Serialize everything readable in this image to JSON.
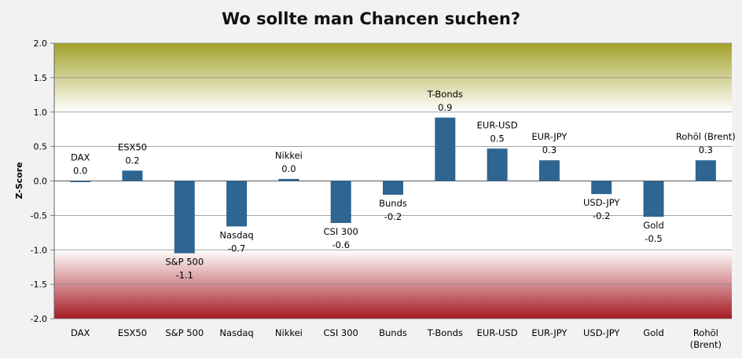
{
  "chart_data": {
    "type": "bar",
    "title": "Wo sollte man Chancen suchen?",
    "ylabel": "Z-Score",
    "xlabel": "",
    "ylim": [
      -2.0,
      2.0
    ],
    "yticks": [
      "2.0",
      "1.5",
      "1.0",
      "0.5",
      "0.0",
      "-0.5",
      "-1.0",
      "-1.5",
      "-2.0"
    ],
    "categories": [
      "DAX",
      "ESX50",
      "S&P 500",
      "Nasdaq",
      "Nikkei",
      "CSI 300",
      "Bunds",
      "T-Bonds",
      "EUR-USD",
      "EUR-JPY",
      "USD-JPY",
      "Gold",
      "Rohöl (Brent)"
    ],
    "values": [
      0.0,
      0.15,
      -1.05,
      -0.66,
      0.03,
      -0.61,
      -0.2,
      0.92,
      0.47,
      0.3,
      -0.19,
      -0.52,
      0.3
    ],
    "value_labels": [
      "0.0",
      "0.2",
      "-1.1",
      "-0.7",
      "0.0",
      "-0.6",
      "-0.2",
      "0.9",
      "0.5",
      "0.3",
      "-0.2",
      "-0.5",
      "0.3"
    ],
    "bar_color": "#2e6591",
    "background_bands": {
      "top": {
        "from": 1.0,
        "to": 2.0,
        "color": "#a3a22a"
      },
      "bottom": {
        "from": -1.0,
        "to": -2.0,
        "color": "#a71a23"
      }
    },
    "grid": true,
    "legend": "none"
  }
}
